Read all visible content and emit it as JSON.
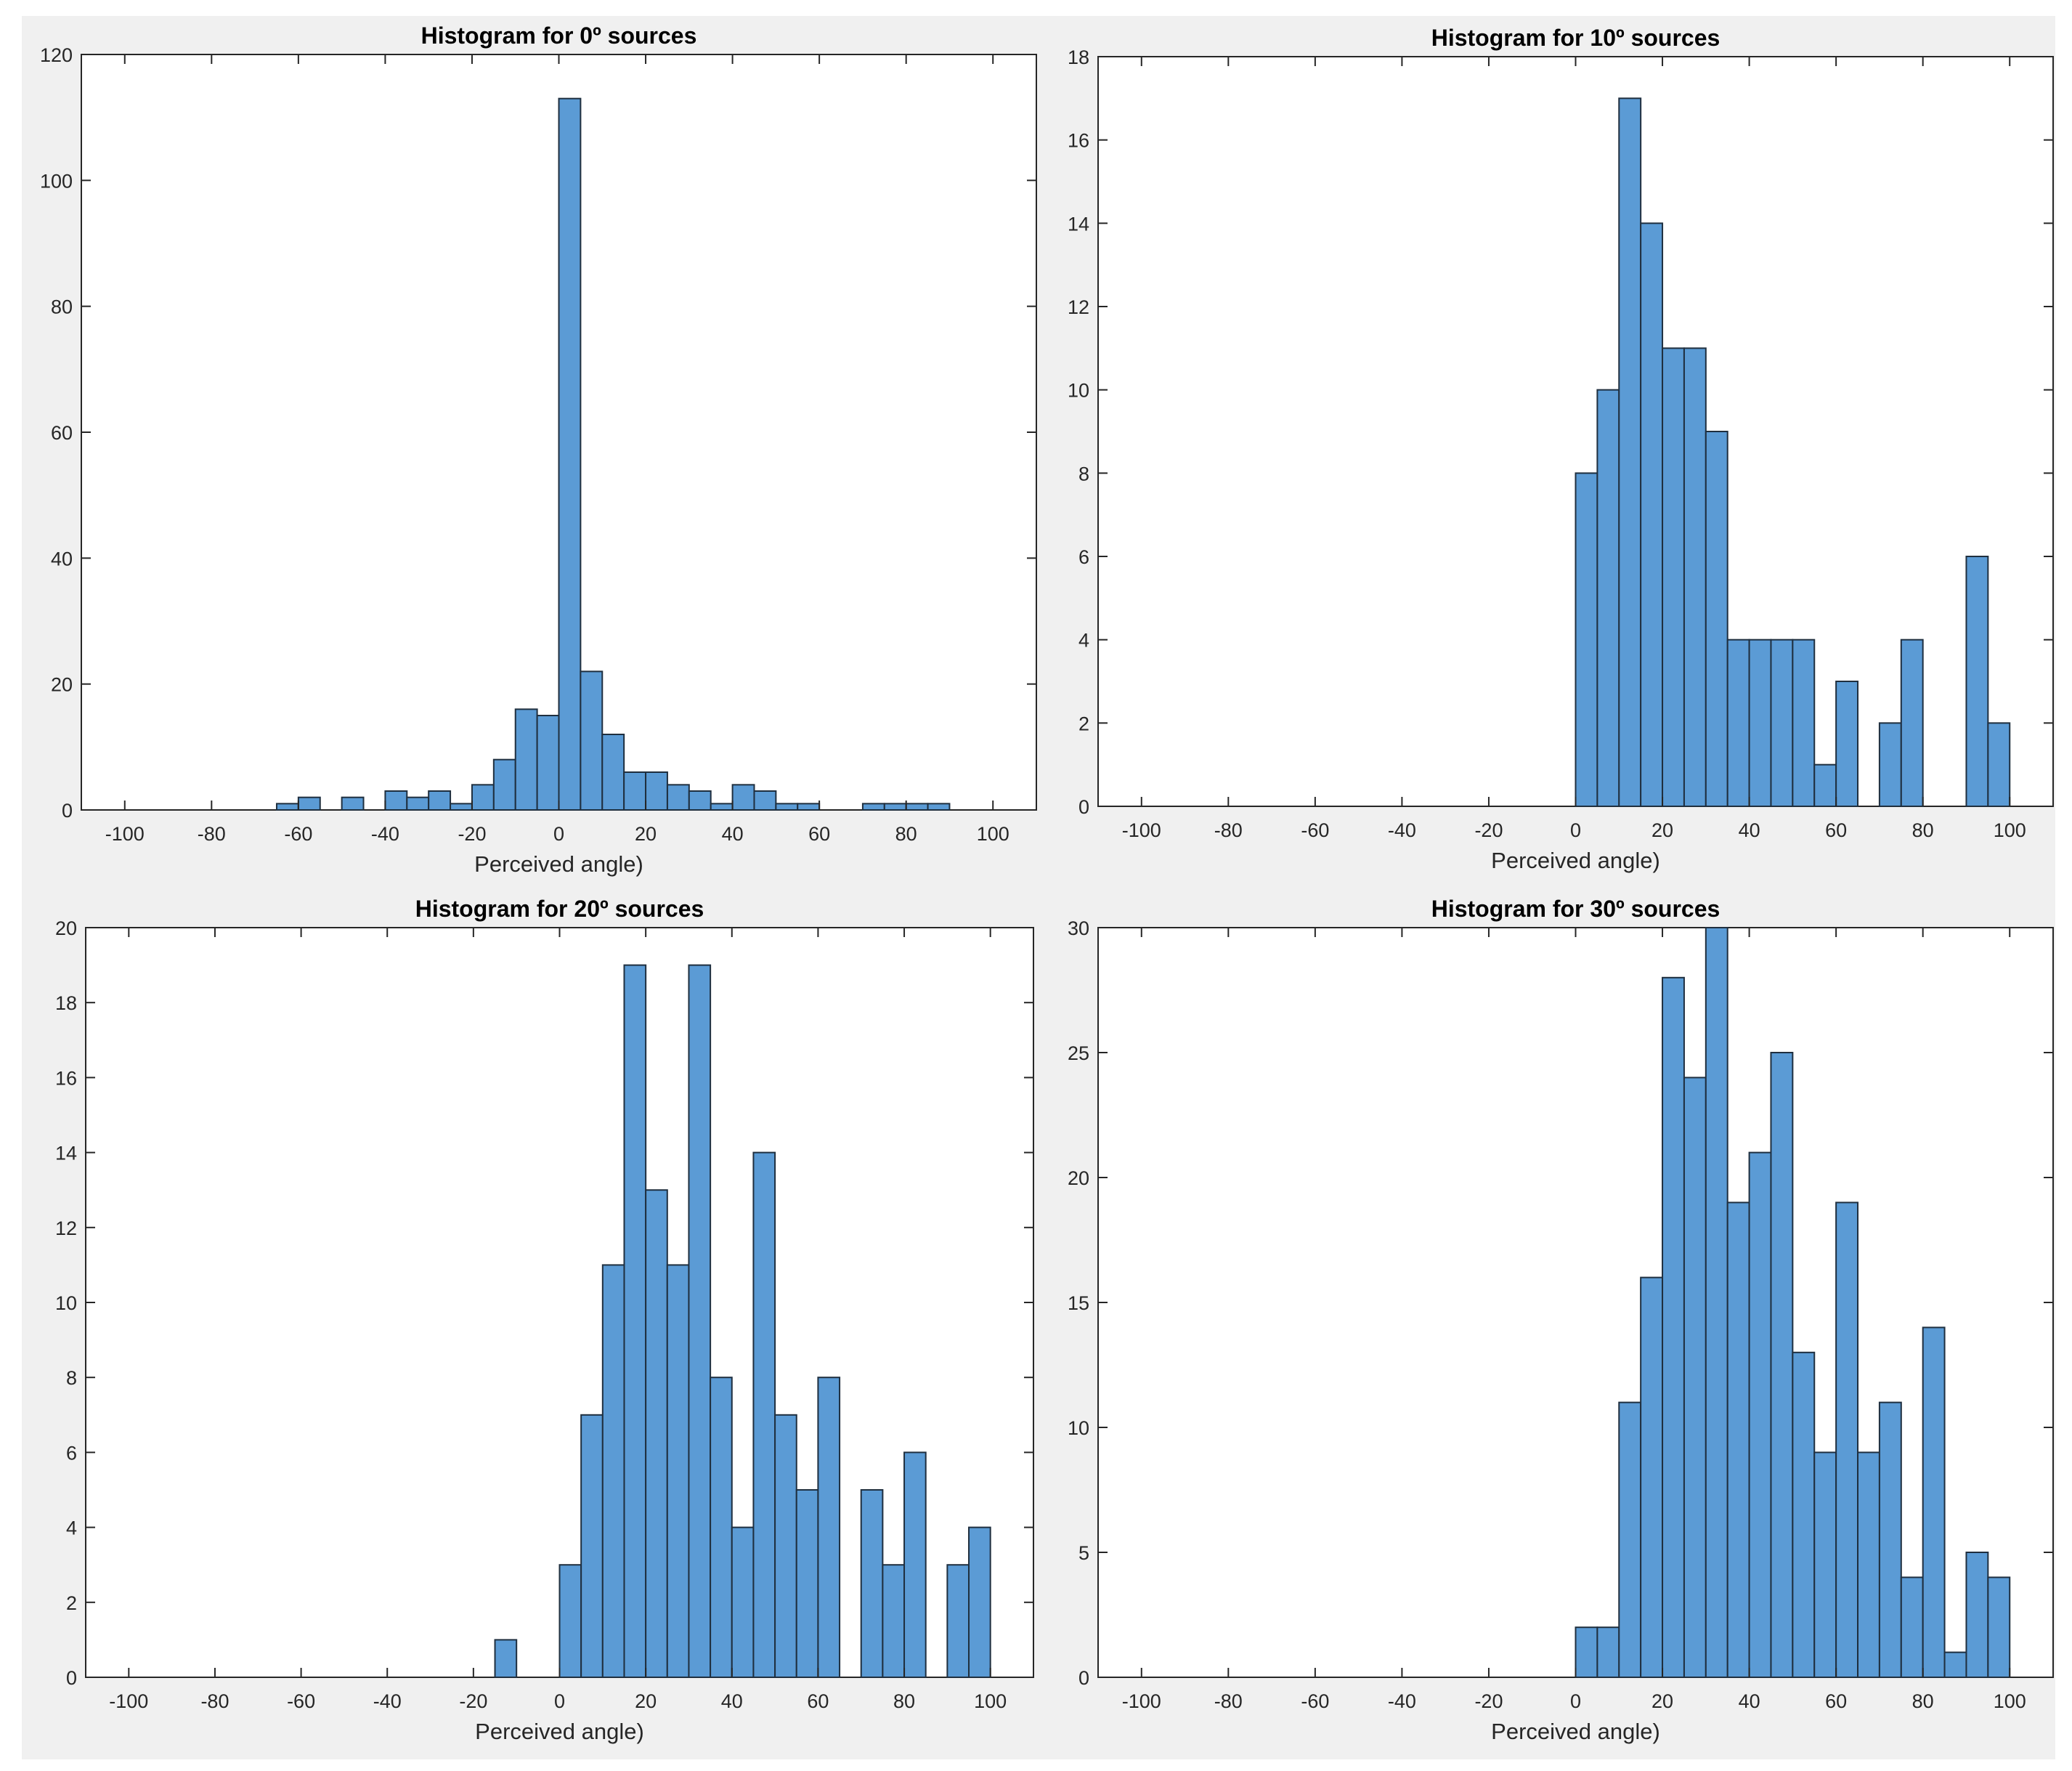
{
  "chart_data": [
    {
      "type": "bar",
      "title": "Histogram for 0º sources",
      "xlabel": "Perceived angle)",
      "ylabel": "",
      "xlim": [
        -110,
        110
      ],
      "ylim": [
        0,
        120
      ],
      "xticks": [
        -100,
        -80,
        -60,
        -40,
        -20,
        0,
        20,
        40,
        60,
        80,
        100
      ],
      "yticks": [
        0,
        20,
        40,
        60,
        80,
        100,
        120
      ],
      "bin_width": 5,
      "bin_starts": [
        -65,
        -60,
        -50,
        -40,
        -35,
        -30,
        -25,
        -20,
        -15,
        -10,
        -5,
        0,
        5,
        10,
        15,
        20,
        25,
        30,
        35,
        40,
        45,
        50,
        55,
        70,
        75,
        80,
        85
      ],
      "values": [
        1,
        2,
        2,
        3,
        2,
        3,
        1,
        4,
        8,
        16,
        15,
        113,
        22,
        12,
        6,
        6,
        4,
        3,
        1,
        4,
        3,
        1,
        1,
        1,
        1,
        1,
        1
      ]
    },
    {
      "type": "bar",
      "title": "Histogram for 10º sources",
      "xlabel": "Perceived angle)",
      "ylabel": "",
      "xlim": [
        -110,
        110
      ],
      "ylim": [
        0,
        18
      ],
      "xticks": [
        -100,
        -80,
        -60,
        -40,
        -20,
        0,
        20,
        40,
        60,
        80,
        100
      ],
      "yticks": [
        0,
        2,
        4,
        6,
        8,
        10,
        12,
        14,
        16,
        18
      ],
      "bin_width": 5,
      "bin_starts": [
        0,
        5,
        10,
        15,
        20,
        25,
        30,
        35,
        40,
        45,
        50,
        55,
        60,
        70,
        75,
        90,
        95
      ],
      "values": [
        8,
        10,
        17,
        14,
        11,
        11,
        9,
        4,
        4,
        4,
        4,
        1,
        3,
        2,
        4,
        6,
        2
      ]
    },
    {
      "type": "bar",
      "title": "Histogram for 20º sources",
      "xlabel": "Perceived angle)",
      "ylabel": "",
      "xlim": [
        -110,
        110
      ],
      "ylim": [
        0,
        20
      ],
      "xticks": [
        -100,
        -80,
        -60,
        -40,
        -20,
        0,
        20,
        40,
        60,
        80,
        100
      ],
      "yticks": [
        0,
        2,
        4,
        6,
        8,
        10,
        12,
        14,
        16,
        18,
        20
      ],
      "bin_width": 5,
      "bin_starts": [
        -15,
        0,
        5,
        10,
        15,
        20,
        25,
        30,
        35,
        40,
        45,
        50,
        55,
        60,
        70,
        75,
        80,
        90,
        95
      ],
      "values": [
        1,
        3,
        7,
        11,
        19,
        13,
        11,
        19,
        8,
        4,
        14,
        7,
        5,
        8,
        5,
        3,
        6,
        3,
        4
      ]
    },
    {
      "type": "bar",
      "title": "Histogram for 30º sources",
      "xlabel": "Perceived angle)",
      "ylabel": "",
      "xlim": [
        -110,
        110
      ],
      "ylim": [
        0,
        30
      ],
      "xticks": [
        -100,
        -80,
        -60,
        -40,
        -20,
        0,
        20,
        40,
        60,
        80,
        100
      ],
      "yticks": [
        0,
        5,
        10,
        15,
        20,
        25,
        30
      ],
      "bin_width": 5,
      "bin_starts": [
        0,
        5,
        10,
        15,
        20,
        25,
        30,
        35,
        40,
        45,
        50,
        55,
        60,
        65,
        70,
        75,
        80,
        85,
        90,
        95
      ],
      "values": [
        2,
        2,
        11,
        16,
        28,
        24,
        30,
        19,
        21,
        25,
        13,
        9,
        19,
        9,
        11,
        4,
        14,
        1,
        5,
        4
      ]
    }
  ],
  "colors": {
    "bar_fill": "#5b9bd5",
    "bar_edge": "#1f2f3f",
    "figure_background": "#f0f0f0",
    "axes_background": "#ffffff",
    "axis_color": "#262626"
  }
}
